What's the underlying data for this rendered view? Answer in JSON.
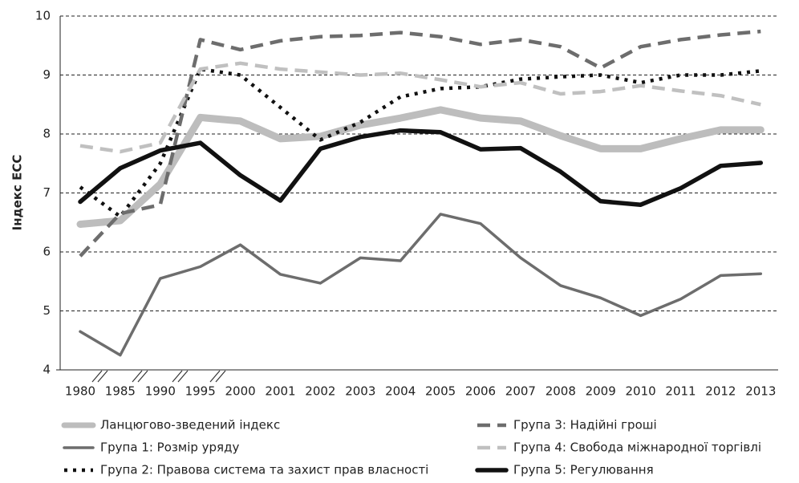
{
  "chart_data": {
    "type": "line",
    "ylabel": "Індекс ЕСС",
    "categories": [
      "1980",
      "1985",
      "1990",
      "1995",
      "2000",
      "2001",
      "2002",
      "2003",
      "2004",
      "2005",
      "2006",
      "2007",
      "2008",
      "2009",
      "2010",
      "2011",
      "2012",
      "2013"
    ],
    "ylim": [
      4,
      10
    ],
    "yticks": [
      4,
      5,
      6,
      7,
      8,
      9,
      10
    ],
    "grid": true,
    "series": [
      {
        "name": "Ланцюгово-зведений індекс",
        "color": "#bdbdbd",
        "style": "solid",
        "values": [
          6.47,
          6.53,
          7.15,
          8.28,
          8.22,
          7.92,
          7.96,
          8.15,
          8.27,
          8.41,
          8.27,
          8.22,
          7.97,
          7.75,
          7.75,
          7.92,
          8.07,
          8.07
        ]
      },
      {
        "name": "Група 1: Розмір уряду",
        "color": "#6d6d6d",
        "style": "solid",
        "values": [
          4.65,
          4.25,
          5.55,
          5.75,
          6.12,
          5.62,
          5.47,
          5.9,
          5.85,
          6.64,
          6.48,
          5.9,
          5.43,
          5.22,
          4.92,
          5.2,
          5.6,
          5.63
        ]
      },
      {
        "name": "Група 2: Правова система та захист прав власності",
        "color": "#111111",
        "style": "dotted",
        "values": [
          7.1,
          6.6,
          7.5,
          9.1,
          9.0,
          8.45,
          7.9,
          8.2,
          8.63,
          8.77,
          8.8,
          8.93,
          8.97,
          9.0,
          8.87,
          9.0,
          9.0,
          9.07
        ]
      },
      {
        "name": "Група 3: Надійні гроші",
        "color": "#6d6d6d",
        "style": "dashed",
        "values": [
          5.93,
          6.65,
          6.8,
          9.6,
          9.43,
          9.58,
          9.65,
          9.67,
          9.72,
          9.65,
          9.52,
          9.6,
          9.48,
          9.12,
          9.48,
          9.6,
          9.68,
          9.74
        ]
      },
      {
        "name": "Група 4: Свобода міжнародної торгівлі",
        "color": "#c0c0c0",
        "style": "dashed",
        "values": [
          7.8,
          7.7,
          7.85,
          9.1,
          9.2,
          9.1,
          9.05,
          9.0,
          9.03,
          8.92,
          8.8,
          8.87,
          8.68,
          8.72,
          8.82,
          8.73,
          8.65,
          8.5
        ]
      },
      {
        "name": "Група 5: Регулювання",
        "color": "#111111",
        "style": "solid",
        "values": [
          6.85,
          7.42,
          7.72,
          7.85,
          7.3,
          6.87,
          7.75,
          7.95,
          8.06,
          8.03,
          7.74,
          7.76,
          7.36,
          6.86,
          6.8,
          7.08,
          7.46,
          7.51
        ]
      }
    ]
  }
}
